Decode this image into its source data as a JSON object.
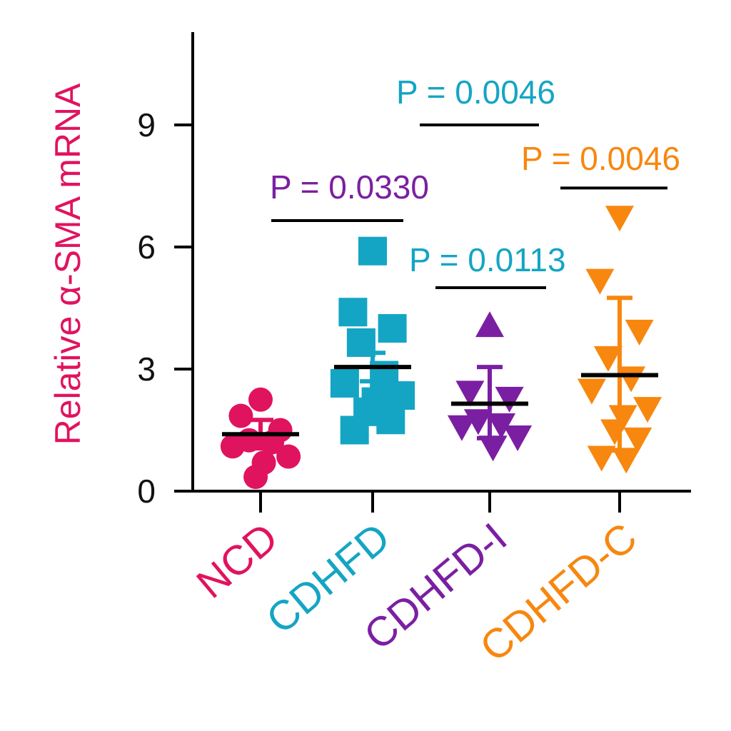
{
  "chart_data": {
    "type": "scatter",
    "title": "",
    "xlabel": "",
    "ylabel": "Relative α-SMA mRNA",
    "ylabel_color": "#e0135f",
    "ylim": [
      0,
      11
    ],
    "yticks": [
      0,
      3,
      6,
      9
    ],
    "categories": [
      "NCD",
      "CDHFD",
      "CDHFD-I",
      "CDHFD-C"
    ],
    "series": [
      {
        "name": "NCD",
        "color": "#e0135f",
        "marker": "circle",
        "mean": 1.4,
        "sd_upper": 1.75,
        "sd_lower": 1.05,
        "points": [
          2.25,
          1.85,
          1.5,
          1.25,
          1.2,
          1.1,
          0.85,
          0.7,
          0.35
        ]
      },
      {
        "name": "CDHFD",
        "color": "#14a5c4",
        "marker": "square",
        "mean": 3.05,
        "sd_upper": 3.4,
        "sd_lower": 2.7,
        "points": [
          5.9,
          4.4,
          4.0,
          3.65,
          2.85,
          2.65,
          2.35,
          2.2,
          1.95,
          1.75,
          1.5
        ]
      },
      {
        "name": "CDHFD-I",
        "color": "#7b1fa2",
        "marker": "triangle-up/down",
        "mean": 2.15,
        "sd_upper": 3.05,
        "sd_lower": 1.3,
        "points": [
          4.05,
          2.45,
          2.3,
          1.75,
          1.65,
          1.6,
          1.35,
          1.1
        ]
      },
      {
        "name": "CDHFD-C",
        "color": "#f7870f",
        "marker": "triangle-down",
        "mean": 2.85,
        "sd_upper": 4.75,
        "sd_lower": 1.0,
        "points": [
          6.75,
          5.2,
          3.95,
          3.3,
          2.8,
          2.5,
          2.05,
          1.85,
          1.5,
          1.3,
          0.85,
          0.8
        ]
      }
    ],
    "comparisons": [
      {
        "from": "NCD",
        "to": "CDHFD",
        "label": "P = 0.0330",
        "color": "#7b1fa2",
        "y": 6.65
      },
      {
        "from": "CDHFD",
        "to": "CDHFD-C",
        "label": "P = 0.0046",
        "color": "#14a5c4",
        "y": 9.0
      },
      {
        "from": "CDHFD",
        "to": "CDHFD-I",
        "label": "P = 0.0113",
        "color": "#14a5c4",
        "y": 5.0
      },
      {
        "from": "CDHFD-I",
        "to": "CDHFD-C",
        "label": "P = 0.0046",
        "color": "#f7870f",
        "y": 7.45
      }
    ]
  }
}
